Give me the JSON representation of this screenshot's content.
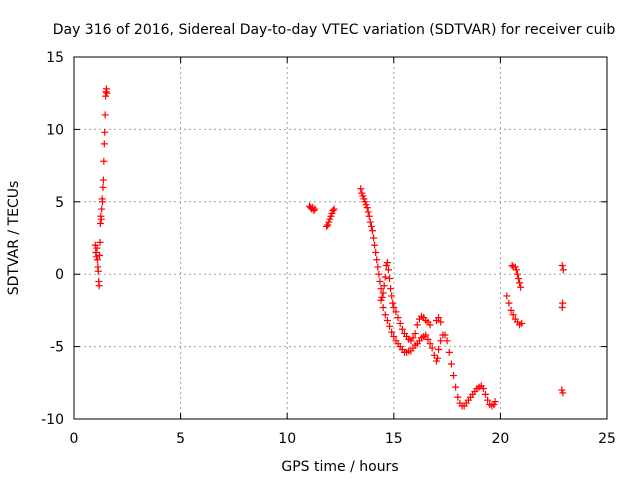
{
  "chart_data": {
    "type": "scatter",
    "title": "Day 316 of 2016, Sidereal Day-to-day VTEC variation (SDTVAR) for receiver cuib",
    "xlabel": "GPS time / hours",
    "ylabel": "SDTVAR / TECUs",
    "xlim": [
      0,
      25
    ],
    "ylim": [
      -10,
      15
    ],
    "xticks": [
      0,
      5,
      10,
      15,
      20,
      25
    ],
    "yticks": [
      -10,
      -5,
      0,
      5,
      10,
      15
    ],
    "grid": true,
    "marker": "+",
    "color": "#ff0000",
    "series": [
      {
        "name": "SDTVAR",
        "points": [
          [
            1.0,
            2.0
          ],
          [
            1.02,
            1.5
          ],
          [
            1.05,
            1.2
          ],
          [
            1.08,
            1.8
          ],
          [
            1.1,
            1.0
          ],
          [
            1.12,
            0.5
          ],
          [
            1.14,
            0.2
          ],
          [
            1.16,
            -0.5
          ],
          [
            1.18,
            -0.8
          ],
          [
            1.2,
            1.3
          ],
          [
            1.22,
            2.2
          ],
          [
            1.24,
            3.5
          ],
          [
            1.26,
            4.0
          ],
          [
            1.28,
            3.8
          ],
          [
            1.3,
            4.5
          ],
          [
            1.32,
            5.2
          ],
          [
            1.34,
            5.0
          ],
          [
            1.36,
            6.0
          ],
          [
            1.38,
            6.5
          ],
          [
            1.4,
            7.8
          ],
          [
            1.42,
            9.0
          ],
          [
            1.44,
            9.8
          ],
          [
            1.46,
            11.0
          ],
          [
            1.48,
            12.3
          ],
          [
            1.5,
            12.6
          ],
          [
            1.52,
            12.8
          ],
          [
            1.54,
            12.5
          ],
          [
            11.05,
            4.7
          ],
          [
            11.1,
            4.6
          ],
          [
            11.15,
            4.5
          ],
          [
            11.2,
            4.6
          ],
          [
            11.25,
            4.4
          ],
          [
            11.3,
            4.5
          ],
          [
            11.85,
            3.3
          ],
          [
            11.9,
            3.4
          ],
          [
            11.95,
            3.6
          ],
          [
            12.0,
            3.8
          ],
          [
            12.05,
            4.0
          ],
          [
            12.1,
            4.2
          ],
          [
            12.15,
            4.4
          ],
          [
            12.2,
            4.5
          ],
          [
            13.45,
            5.9
          ],
          [
            13.5,
            5.6
          ],
          [
            13.55,
            5.4
          ],
          [
            13.6,
            5.2
          ],
          [
            13.65,
            5.0
          ],
          [
            13.7,
            4.8
          ],
          [
            13.75,
            4.6
          ],
          [
            13.8,
            4.3
          ],
          [
            13.85,
            4.0
          ],
          [
            13.9,
            3.6
          ],
          [
            13.95,
            3.3
          ],
          [
            14.0,
            3.0
          ],
          [
            14.05,
            2.5
          ],
          [
            14.1,
            2.0
          ],
          [
            14.15,
            1.5
          ],
          [
            14.2,
            1.0
          ],
          [
            14.25,
            0.5
          ],
          [
            14.3,
            0.0
          ],
          [
            14.35,
            -0.5
          ],
          [
            14.4,
            -1.0
          ],
          [
            14.45,
            -1.6
          ],
          [
            14.5,
            -1.3
          ],
          [
            14.55,
            -0.8
          ],
          [
            14.6,
            -0.2
          ],
          [
            14.65,
            0.6
          ],
          [
            14.7,
            0.8
          ],
          [
            14.75,
            0.3
          ],
          [
            14.8,
            -0.3
          ],
          [
            14.85,
            -1.0
          ],
          [
            14.9,
            -1.5
          ],
          [
            14.95,
            -2.0
          ],
          [
            15.0,
            -2.3
          ],
          [
            15.1,
            -2.6
          ],
          [
            15.2,
            -3.0
          ],
          [
            15.3,
            -3.4
          ],
          [
            15.4,
            -3.8
          ],
          [
            15.5,
            -4.1
          ],
          [
            15.6,
            -4.3
          ],
          [
            15.7,
            -4.5
          ],
          [
            15.8,
            -4.6
          ],
          [
            15.9,
            -4.4
          ],
          [
            16.0,
            -4.1
          ],
          [
            16.1,
            -3.5
          ],
          [
            16.2,
            -3.1
          ],
          [
            16.3,
            -2.9
          ],
          [
            16.4,
            -3.0
          ],
          [
            16.5,
            -3.2
          ],
          [
            16.6,
            -3.3
          ],
          [
            16.7,
            -3.5
          ],
          [
            14.4,
            -1.8
          ],
          [
            14.5,
            -2.3
          ],
          [
            14.6,
            -2.8
          ],
          [
            14.7,
            -3.2
          ],
          [
            14.8,
            -3.6
          ],
          [
            14.9,
            -4.0
          ],
          [
            15.0,
            -4.3
          ],
          [
            15.1,
            -4.6
          ],
          [
            15.2,
            -4.8
          ],
          [
            15.3,
            -5.0
          ],
          [
            15.4,
            -5.2
          ],
          [
            15.5,
            -5.4
          ],
          [
            15.6,
            -5.4
          ],
          [
            15.7,
            -5.3
          ],
          [
            15.8,
            -5.3
          ],
          [
            15.9,
            -5.1
          ],
          [
            16.0,
            -4.9
          ],
          [
            16.1,
            -4.8
          ],
          [
            16.2,
            -4.6
          ],
          [
            16.3,
            -4.4
          ],
          [
            16.4,
            -4.3
          ],
          [
            16.5,
            -4.2
          ],
          [
            16.6,
            -4.5
          ],
          [
            16.7,
            -4.8
          ],
          [
            16.8,
            -5.1
          ],
          [
            16.9,
            -5.6
          ],
          [
            17.0,
            -6.0
          ],
          [
            17.05,
            -5.8
          ],
          [
            17.1,
            -5.2
          ],
          [
            17.2,
            -4.6
          ],
          [
            17.3,
            -4.2
          ],
          [
            17.4,
            -4.2
          ],
          [
            17.5,
            -4.6
          ],
          [
            17.6,
            -5.4
          ],
          [
            17.7,
            -6.2
          ],
          [
            17.8,
            -7.0
          ],
          [
            17.9,
            -7.8
          ],
          [
            18.0,
            -8.5
          ],
          [
            18.1,
            -8.9
          ],
          [
            18.2,
            -9.1
          ],
          [
            18.3,
            -9.1
          ],
          [
            18.4,
            -8.9
          ],
          [
            18.5,
            -8.7
          ],
          [
            18.6,
            -8.5
          ],
          [
            18.7,
            -8.3
          ],
          [
            18.8,
            -8.1
          ],
          [
            18.9,
            -7.9
          ],
          [
            19.0,
            -7.8
          ],
          [
            19.1,
            -7.7
          ],
          [
            19.2,
            -7.9
          ],
          [
            19.3,
            -8.3
          ],
          [
            19.4,
            -8.7
          ],
          [
            19.5,
            -9.0
          ],
          [
            19.6,
            -9.1
          ],
          [
            19.7,
            -9.0
          ],
          [
            19.75,
            -8.8
          ],
          [
            17.0,
            -3.2
          ],
          [
            17.1,
            -3.0
          ],
          [
            17.2,
            -3.3
          ],
          [
            20.3,
            -1.5
          ],
          [
            20.4,
            -2.0
          ],
          [
            20.5,
            -2.5
          ],
          [
            20.6,
            -2.8
          ],
          [
            20.7,
            -3.1
          ],
          [
            20.8,
            -3.3
          ],
          [
            20.9,
            -3.5
          ],
          [
            21.0,
            -3.4
          ],
          [
            20.55,
            0.6
          ],
          [
            20.6,
            0.5
          ],
          [
            20.7,
            0.5
          ],
          [
            20.75,
            0.3
          ],
          [
            20.8,
            0.0
          ],
          [
            20.85,
            -0.3
          ],
          [
            20.9,
            -0.6
          ],
          [
            20.95,
            -0.9
          ],
          [
            22.9,
            0.6
          ],
          [
            22.95,
            0.3
          ],
          [
            22.92,
            -2.0
          ],
          [
            22.9,
            -2.3
          ],
          [
            22.88,
            -8.0
          ],
          [
            22.93,
            -8.2
          ]
        ]
      }
    ]
  }
}
